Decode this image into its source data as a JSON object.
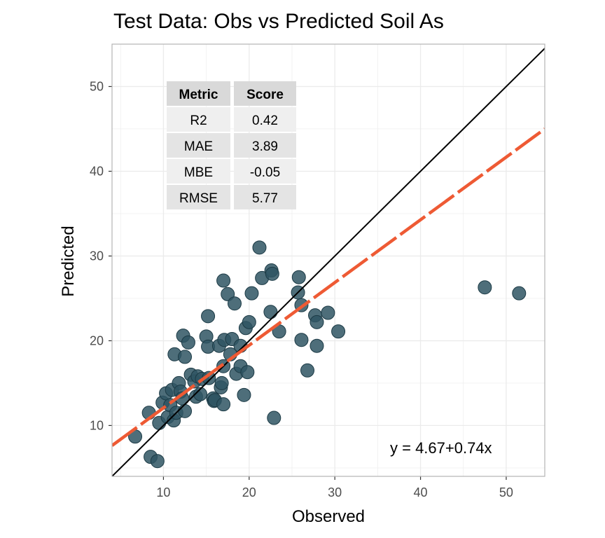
{
  "chart_data": {
    "type": "scatter",
    "title": "Test Data: Obs vs Predicted Soil As",
    "xlabel": "Observed",
    "ylabel": "Predicted",
    "xlim": [
      4,
      54.5
    ],
    "ylim": [
      4,
      55
    ],
    "xticks": [
      10,
      20,
      30,
      40,
      50
    ],
    "yticks": [
      10,
      20,
      30,
      40,
      50
    ],
    "grid": true,
    "point_color": "#2f5563",
    "fit_color": "#ee5a34",
    "identity_color": "#000000",
    "fit": {
      "intercept": 4.67,
      "slope": 0.74,
      "label": "y = 4.67+0.74x"
    },
    "metrics_table": {
      "headers": [
        "Metric",
        "Score"
      ],
      "rows": [
        [
          "R2",
          "0.42"
        ],
        [
          "MAE",
          "3.89"
        ],
        [
          "MBE",
          "-0.05"
        ],
        [
          "RMSE",
          "5.77"
        ]
      ]
    },
    "points": [
      [
        6.7,
        8.7
      ],
      [
        8.3,
        11.5
      ],
      [
        8.5,
        6.3
      ],
      [
        9.3,
        5.8
      ],
      [
        9.5,
        10.3
      ],
      [
        9.9,
        12.7
      ],
      [
        10.3,
        13.8
      ],
      [
        10.5,
        11.0
      ],
      [
        10.8,
        12.4
      ],
      [
        11.0,
        14.2
      ],
      [
        11.2,
        10.6
      ],
      [
        11.3,
        18.4
      ],
      [
        11.5,
        11.5
      ],
      [
        11.8,
        15.0
      ],
      [
        12.0,
        14.0
      ],
      [
        12.2,
        13.2
      ],
      [
        12.3,
        20.6
      ],
      [
        12.5,
        11.7
      ],
      [
        12.5,
        18.1
      ],
      [
        12.9,
        19.8
      ],
      [
        13.2,
        16.0
      ],
      [
        13.6,
        15.2
      ],
      [
        13.8,
        13.4
      ],
      [
        14.0,
        15.8
      ],
      [
        14.3,
        13.7
      ],
      [
        14.5,
        15.5
      ],
      [
        15.0,
        20.5
      ],
      [
        15.2,
        19.3
      ],
      [
        15.2,
        22.9
      ],
      [
        15.3,
        15.6
      ],
      [
        15.8,
        13.2
      ],
      [
        15.9,
        12.9
      ],
      [
        16.0,
        13.0
      ],
      [
        16.5,
        19.4
      ],
      [
        16.7,
        14.5
      ],
      [
        16.8,
        15.0
      ],
      [
        17.0,
        17.0
      ],
      [
        17.0,
        27.1
      ],
      [
        17.0,
        12.5
      ],
      [
        17.1,
        20.1
      ],
      [
        17.5,
        25.5
      ],
      [
        17.8,
        18.4
      ],
      [
        18.0,
        20.2
      ],
      [
        18.3,
        24.4
      ],
      [
        18.5,
        16.1
      ],
      [
        19.0,
        19.4
      ],
      [
        19.0,
        17.0
      ],
      [
        19.4,
        13.6
      ],
      [
        19.6,
        21.5
      ],
      [
        19.8,
        16.3
      ],
      [
        20.0,
        22.2
      ],
      [
        20.3,
        25.6
      ],
      [
        21.2,
        31.0
      ],
      [
        21.5,
        27.4
      ],
      [
        22.5,
        23.4
      ],
      [
        22.6,
        28.3
      ],
      [
        22.7,
        27.9
      ],
      [
        22.9,
        10.9
      ],
      [
        23.5,
        21.1
      ],
      [
        25.7,
        25.7
      ],
      [
        25.8,
        27.5
      ],
      [
        26.1,
        24.2
      ],
      [
        26.1,
        20.1
      ],
      [
        26.8,
        16.5
      ],
      [
        27.7,
        23.0
      ],
      [
        27.9,
        22.2
      ],
      [
        27.9,
        19.4
      ],
      [
        29.2,
        23.3
      ],
      [
        30.4,
        21.1
      ],
      [
        47.5,
        26.3
      ],
      [
        51.5,
        25.6
      ]
    ]
  }
}
